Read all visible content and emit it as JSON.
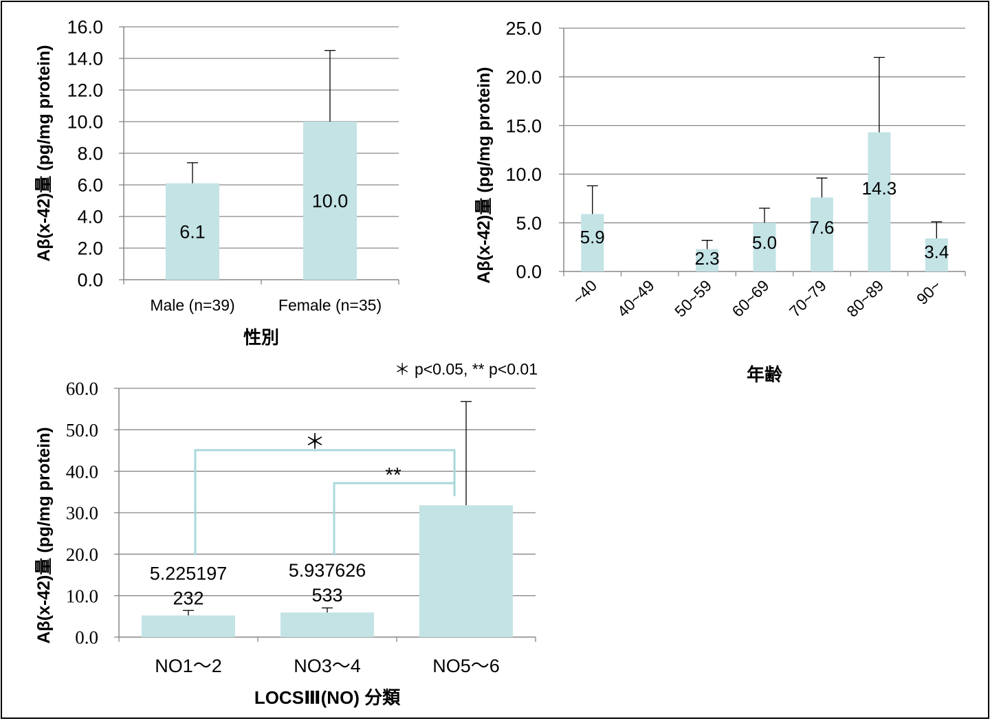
{
  "colors": {
    "bar": "#c3e3e5",
    "grid": "#868686",
    "axis": "#868686",
    "bracket": "#a8d8db",
    "frame": "#000000"
  },
  "chart_data": [
    {
      "type": "bar",
      "title": "",
      "xlabel": "性別",
      "ylabel": "Aβ(x-42)量 (pg/mg protein)",
      "ylim": [
        0,
        16
      ],
      "yticks": [
        "0.0",
        "2.0",
        "4.0",
        "6.0",
        "8.0",
        "10.0",
        "12.0",
        "14.0",
        "16.0"
      ],
      "grid": true,
      "categories": [
        "Male (n=39)",
        "Female (n=35)"
      ],
      "values": [
        6.1,
        10.0
      ],
      "errors": [
        1.3,
        4.5
      ],
      "data_labels": [
        "6.1",
        "10.0"
      ]
    },
    {
      "type": "bar",
      "title": "",
      "xlabel": "年齢",
      "ylabel": "Aβ(x-42)量 (pg/mg protein)",
      "ylim": [
        0,
        25
      ],
      "yticks": [
        "0.0",
        "5.0",
        "10.0",
        "15.0",
        "20.0",
        "25.0"
      ],
      "grid": true,
      "categories": [
        "~40",
        "40~49",
        "50~59",
        "60~69",
        "70~79",
        "80~89",
        "90~"
      ],
      "values": [
        5.9,
        null,
        2.3,
        5.0,
        7.6,
        14.3,
        3.4
      ],
      "errors": [
        2.9,
        null,
        0.9,
        1.5,
        2.0,
        7.7,
        1.7
      ],
      "data_labels": [
        "5.9",
        "",
        "2.3",
        "5.0",
        "7.6",
        "14.3",
        "3.4"
      ]
    },
    {
      "type": "bar",
      "title": "",
      "xlabel": "LOCSⅢ(NO) 分類",
      "ylabel": "Aβ(x-42)量 (pg/mg protein)",
      "ylim": [
        0,
        60
      ],
      "yticks": [
        "0.0",
        "10.0",
        "20.0",
        "30.0",
        "40.0",
        "50.0",
        "60.0"
      ],
      "grid": true,
      "categories": [
        "NO1～2",
        "NO3～4",
        "NO5～6"
      ],
      "values": [
        5.225197232,
        5.937626533,
        31.8
      ],
      "errors": [
        1.2,
        1.1,
        25.0
      ],
      "data_labels": [
        [
          "5.225197",
          "232"
        ],
        [
          "5.937626",
          "533"
        ],
        []
      ],
      "note": "＊ p<0.05, ** p<0.01",
      "significance": [
        {
          "from": 0,
          "to": 2,
          "label": "＊"
        },
        {
          "from": 1,
          "to": 2,
          "label": "**"
        }
      ]
    }
  ]
}
